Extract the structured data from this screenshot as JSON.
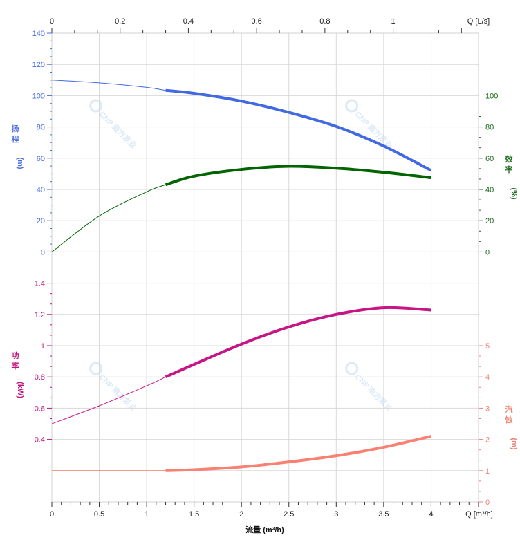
{
  "chart_data": {
    "type": "line",
    "title": "",
    "xlabel": "流量 (m³/h)",
    "x_axis": {
      "label": "Q [m³/h]",
      "range": [
        0,
        4.5
      ],
      "ticks": [
        "0",
        "0.5",
        "1",
        "1.5",
        "2",
        "2.5",
        "3",
        "3.5",
        "4"
      ],
      "tick_values": [
        0,
        0.5,
        1,
        1.5,
        2,
        2.5,
        3,
        3.5,
        4
      ]
    },
    "x2_axis": {
      "label": "Q [L/s]",
      "range": [
        0,
        1.25
      ],
      "ticks": [
        "0",
        "0.2",
        "0.4",
        "0.6",
        "0.8",
        "1"
      ],
      "tick_values": [
        0,
        0.2,
        0.4,
        0.6,
        0.8,
        1
      ]
    },
    "operating_range": [
      1.2,
      4
    ],
    "grid": true,
    "axes": {
      "head": {
        "label_chars": [
          "扬",
          "程"
        ],
        "unit": "(m)",
        "range": [
          0,
          140
        ],
        "ticks": [
          "0",
          "20",
          "40",
          "60",
          "80",
          "100",
          "120",
          "140"
        ],
        "tick_values": [
          0,
          20,
          40,
          60,
          80,
          100,
          120,
          140
        ],
        "color": "#4a6ee0"
      },
      "efficiency": {
        "label_chars": [
          "效",
          "率"
        ],
        "unit": "(%)",
        "range": [
          0,
          100
        ],
        "ticks": [
          "0",
          "20",
          "40",
          "60",
          "80",
          "100"
        ],
        "tick_values": [
          0,
          20,
          40,
          60,
          80,
          100
        ],
        "color": "#1e6b1e"
      },
      "power": {
        "label_chars": [
          "功",
          "率"
        ],
        "unit": "(kW)",
        "range": [
          0,
          1.4
        ],
        "ticks": [
          "0.4",
          "0.6",
          "0.8",
          "1",
          "1.2",
          "1.4"
        ],
        "tick_values": [
          0.4,
          0.6,
          0.8,
          1,
          1.2,
          1.4
        ],
        "color": "#c0157f"
      },
      "npsh": {
        "label_chars": [
          "汽",
          "蚀"
        ],
        "unit": "(m)",
        "range": [
          0,
          5
        ],
        "ticks": [
          "0",
          "1",
          "2",
          "3",
          "4",
          "5"
        ],
        "tick_values": [
          0,
          1,
          2,
          3,
          4,
          5
        ],
        "color": "#f08070"
      }
    },
    "series": [
      {
        "name": "head",
        "axis": "head",
        "color": "#4169e1",
        "x": [
          0,
          0.5,
          1,
          1.2,
          1.5,
          2,
          2.5,
          3,
          3.5,
          4
        ],
        "y": [
          110,
          108.2,
          105.3,
          103.4,
          101.5,
          96.5,
          89.3,
          80.3,
          67.8,
          52.2
        ]
      },
      {
        "name": "efficiency",
        "axis": "efficiency",
        "color": "#006400",
        "x": [
          0,
          0.5,
          1,
          1.2,
          1.5,
          2,
          2.5,
          3,
          3.5,
          4
        ],
        "y": [
          0,
          23,
          38.5,
          43,
          48.5,
          52.8,
          54.8,
          53.6,
          51,
          47.5
        ]
      },
      {
        "name": "power",
        "axis": "power",
        "color": "#c71585",
        "x": [
          0,
          0.5,
          1,
          1.2,
          1.5,
          2,
          2.5,
          3,
          3.5,
          4
        ],
        "y": [
          0.5,
          0.615,
          0.743,
          0.8,
          0.88,
          1.01,
          1.12,
          1.2,
          1.243,
          1.228
        ]
      },
      {
        "name": "npsh",
        "axis": "npsh",
        "color": "#fa8072",
        "x": [
          0,
          0.5,
          1,
          1.2,
          1.5,
          2,
          2.5,
          3,
          3.5,
          4
        ],
        "y": [
          1.0,
          1.0,
          1.0,
          1.0,
          1.03,
          1.12,
          1.28,
          1.48,
          1.75,
          2.1
        ]
      }
    ],
    "watermark": "CNP 南方泵业"
  }
}
